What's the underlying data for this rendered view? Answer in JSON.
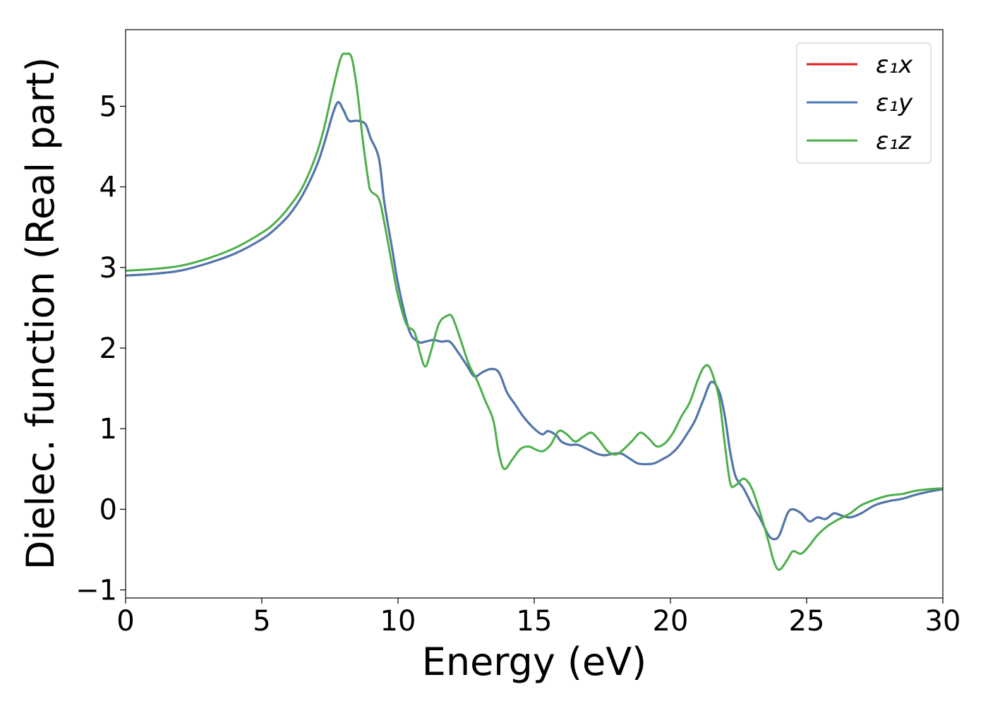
{
  "chart_data": {
    "type": "line",
    "title": "",
    "xlabel": "Energy (eV)",
    "ylabel": "Dielec. function (Real part)",
    "xlim": [
      0,
      30
    ],
    "ylim": [
      -1.1,
      5.95
    ],
    "x_ticks": [
      0,
      5,
      10,
      15,
      20,
      25,
      30
    ],
    "x_tick_labels": [
      "0",
      "5",
      "10",
      "15",
      "20",
      "25",
      "30"
    ],
    "y_ticks": [
      -1,
      0,
      1,
      2,
      3,
      4,
      5
    ],
    "y_tick_labels": [
      "−1",
      "0",
      "1",
      "2",
      "3",
      "4",
      "5"
    ],
    "grid": false,
    "legend_position": "top-right",
    "legend_labels": [
      "ε₁x",
      "ε₁y",
      "ε₁z"
    ],
    "series": [
      {
        "name": "ε₁x",
        "color": "#e41a1c",
        "x": [
          0,
          1,
          2,
          3,
          4,
          5,
          5.5,
          6,
          6.5,
          7,
          7.3,
          7.6,
          7.8,
          8.0,
          8.2,
          8.5,
          8.8,
          9.0,
          9.3,
          9.5,
          9.8,
          10.0,
          10.3,
          10.5,
          10.8,
          11.0,
          11.3,
          11.6,
          11.9,
          12.2,
          12.5,
          12.8,
          13.1,
          13.4,
          13.7,
          14.0,
          14.3,
          14.6,
          15.0,
          15.3,
          15.5,
          15.8,
          16.0,
          16.3,
          16.6,
          17.0,
          17.3,
          17.6,
          17.9,
          18.2,
          18.5,
          18.8,
          19.1,
          19.4,
          19.7,
          20.0,
          20.3,
          20.6,
          20.9,
          21.2,
          21.5,
          21.8,
          22.0,
          22.2,
          22.4,
          22.7,
          23.0,
          23.3,
          23.6,
          23.8,
          24.0,
          24.3,
          24.5,
          24.8,
          25.1,
          25.4,
          25.7,
          26.0,
          26.3,
          26.6,
          27.0,
          27.5,
          28.0,
          28.5,
          29.0,
          29.5,
          30.0
        ],
        "y": [
          2.9,
          2.92,
          2.96,
          3.05,
          3.17,
          3.35,
          3.48,
          3.65,
          3.9,
          4.25,
          4.55,
          4.9,
          5.05,
          4.95,
          4.82,
          4.82,
          4.78,
          4.6,
          4.35,
          3.8,
          3.2,
          2.8,
          2.35,
          2.15,
          2.07,
          2.08,
          2.1,
          2.08,
          2.08,
          1.95,
          1.8,
          1.65,
          1.7,
          1.74,
          1.7,
          1.45,
          1.3,
          1.15,
          1.0,
          0.93,
          0.97,
          0.92,
          0.84,
          0.8,
          0.8,
          0.74,
          0.69,
          0.67,
          0.69,
          0.69,
          0.63,
          0.57,
          0.56,
          0.57,
          0.62,
          0.68,
          0.78,
          0.93,
          1.1,
          1.35,
          1.58,
          1.45,
          1.15,
          0.7,
          0.4,
          0.25,
          0.05,
          -0.12,
          -0.32,
          -0.37,
          -0.32,
          -0.05,
          0.0,
          -0.05,
          -0.15,
          -0.1,
          -0.12,
          -0.05,
          -0.08,
          -0.1,
          -0.05,
          0.05,
          0.1,
          0.13,
          0.18,
          0.22,
          0.25
        ]
      },
      {
        "name": "ε₁y",
        "color": "#4a78b0",
        "x": [
          0,
          1,
          2,
          3,
          4,
          5,
          5.5,
          6,
          6.5,
          7,
          7.3,
          7.6,
          7.8,
          8.0,
          8.2,
          8.5,
          8.8,
          9.0,
          9.3,
          9.5,
          9.8,
          10.0,
          10.3,
          10.5,
          10.8,
          11.0,
          11.3,
          11.6,
          11.9,
          12.2,
          12.5,
          12.8,
          13.1,
          13.4,
          13.7,
          14.0,
          14.3,
          14.6,
          15.0,
          15.3,
          15.5,
          15.8,
          16.0,
          16.3,
          16.6,
          17.0,
          17.3,
          17.6,
          17.9,
          18.2,
          18.5,
          18.8,
          19.1,
          19.4,
          19.7,
          20.0,
          20.3,
          20.6,
          20.9,
          21.2,
          21.5,
          21.8,
          22.0,
          22.2,
          22.4,
          22.7,
          23.0,
          23.3,
          23.6,
          23.8,
          24.0,
          24.3,
          24.5,
          24.8,
          25.1,
          25.4,
          25.7,
          26.0,
          26.3,
          26.6,
          27.0,
          27.5,
          28.0,
          28.5,
          29.0,
          29.5,
          30.0
        ],
        "y": [
          2.9,
          2.92,
          2.96,
          3.05,
          3.17,
          3.35,
          3.48,
          3.65,
          3.9,
          4.25,
          4.55,
          4.9,
          5.05,
          4.95,
          4.82,
          4.82,
          4.78,
          4.6,
          4.35,
          3.8,
          3.2,
          2.8,
          2.35,
          2.15,
          2.07,
          2.08,
          2.1,
          2.08,
          2.08,
          1.95,
          1.8,
          1.65,
          1.7,
          1.74,
          1.7,
          1.45,
          1.3,
          1.15,
          1.0,
          0.93,
          0.97,
          0.92,
          0.84,
          0.8,
          0.8,
          0.74,
          0.69,
          0.67,
          0.69,
          0.69,
          0.63,
          0.57,
          0.56,
          0.57,
          0.62,
          0.68,
          0.78,
          0.93,
          1.1,
          1.35,
          1.58,
          1.45,
          1.15,
          0.7,
          0.4,
          0.25,
          0.05,
          -0.12,
          -0.32,
          -0.37,
          -0.32,
          -0.05,
          0.0,
          -0.05,
          -0.15,
          -0.1,
          -0.12,
          -0.05,
          -0.08,
          -0.1,
          -0.05,
          0.05,
          0.1,
          0.13,
          0.18,
          0.22,
          0.25
        ]
      },
      {
        "name": "ε₁z",
        "color": "#4daf4a",
        "x": [
          0,
          1,
          2,
          3,
          4,
          5,
          5.5,
          6,
          6.5,
          7,
          7.3,
          7.6,
          7.9,
          8.1,
          8.3,
          8.5,
          8.7,
          8.9,
          9.0,
          9.3,
          9.5,
          9.8,
          10.0,
          10.3,
          10.6,
          10.8,
          11.0,
          11.2,
          11.5,
          11.8,
          12.0,
          12.3,
          12.6,
          12.9,
          13.2,
          13.5,
          13.7,
          13.9,
          14.2,
          14.5,
          14.8,
          15.0,
          15.3,
          15.6,
          15.9,
          16.2,
          16.5,
          16.8,
          17.1,
          17.4,
          17.7,
          18.0,
          18.3,
          18.6,
          18.9,
          19.2,
          19.5,
          19.8,
          20.1,
          20.4,
          20.7,
          21.0,
          21.2,
          21.4,
          21.6,
          21.8,
          22.0,
          22.2,
          22.4,
          22.7,
          23.0,
          23.3,
          23.6,
          23.8,
          24.0,
          24.3,
          24.5,
          24.8,
          25.1,
          25.4,
          25.8,
          26.2,
          26.6,
          27.0,
          27.5,
          28.0,
          28.5,
          29.0,
          29.5,
          30.0
        ],
        "y": [
          2.96,
          2.98,
          3.02,
          3.11,
          3.24,
          3.43,
          3.56,
          3.75,
          4.0,
          4.4,
          4.75,
          5.2,
          5.6,
          5.65,
          5.6,
          5.2,
          4.6,
          4.1,
          3.95,
          3.85,
          3.55,
          3.0,
          2.65,
          2.3,
          2.2,
          1.95,
          1.77,
          1.95,
          2.3,
          2.4,
          2.38,
          2.1,
          1.8,
          1.6,
          1.35,
          1.1,
          0.7,
          0.5,
          0.62,
          0.75,
          0.78,
          0.75,
          0.72,
          0.8,
          0.97,
          0.93,
          0.84,
          0.9,
          0.95,
          0.85,
          0.72,
          0.68,
          0.75,
          0.85,
          0.95,
          0.88,
          0.78,
          0.82,
          0.95,
          1.15,
          1.32,
          1.6,
          1.75,
          1.78,
          1.62,
          1.35,
          0.8,
          0.32,
          0.3,
          0.38,
          0.25,
          -0.05,
          -0.4,
          -0.65,
          -0.75,
          -0.62,
          -0.52,
          -0.55,
          -0.45,
          -0.32,
          -0.2,
          -0.12,
          -0.05,
          0.05,
          0.12,
          0.17,
          0.19,
          0.23,
          0.25,
          0.26
        ]
      }
    ]
  }
}
